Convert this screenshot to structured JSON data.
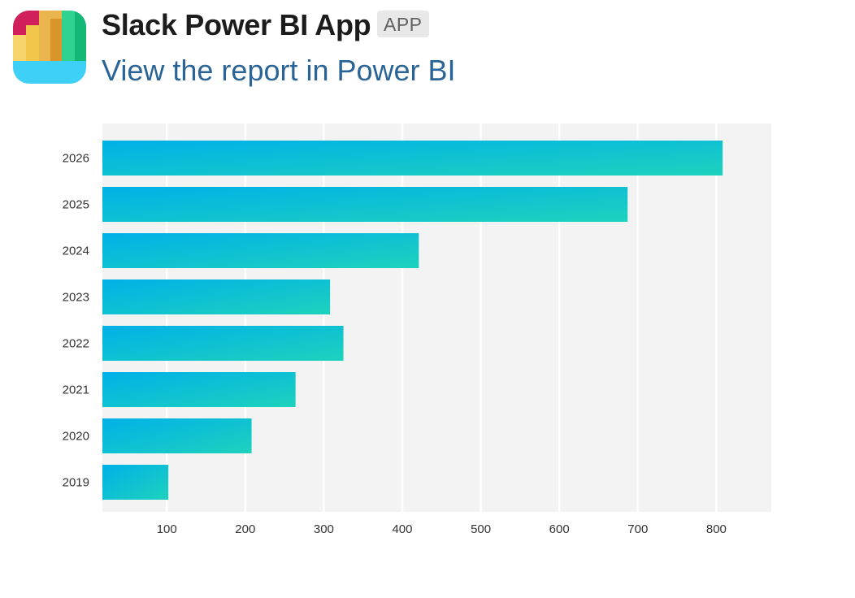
{
  "message": {
    "app_name": "Slack Power BI App",
    "badge": "APP",
    "link_text": "View the report in Power BI"
  },
  "icons": {
    "app_logo": "power-bi-logo-icon"
  },
  "colors": {
    "bar_start": "#00b0e8",
    "bar_end": "#1dd2bd",
    "plot_background": "#f3f3f3",
    "link": "#2a6496"
  },
  "chart_data": {
    "type": "bar",
    "orientation": "horizontal",
    "title": "",
    "xlabel": "",
    "ylabel": "",
    "categories": [
      "2026",
      "2025",
      "2024",
      "2023",
      "2022",
      "2021",
      "2020",
      "2019"
    ],
    "values": [
      808,
      687,
      421,
      308,
      325,
      264,
      208,
      102
    ],
    "x_ticks": [
      "100",
      "200",
      "300",
      "400",
      "500",
      "600",
      "700",
      "800"
    ],
    "xlim": [
      18,
      870
    ],
    "grid": true,
    "legend": "none"
  }
}
